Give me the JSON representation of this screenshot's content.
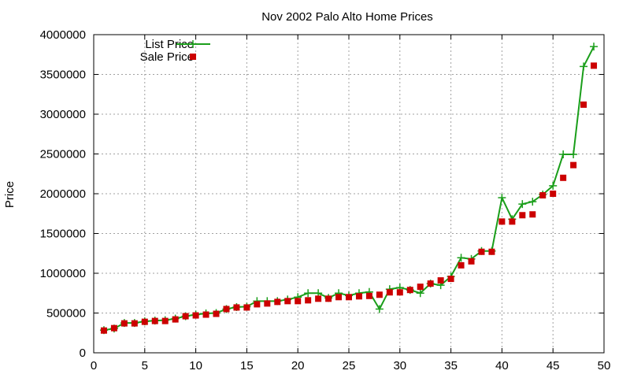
{
  "chart_data": {
    "type": "line",
    "title": "Nov 2002 Palo Alto Home Prices",
    "xlabel": "",
    "ylabel": "Price",
    "xlim": [
      0,
      50
    ],
    "ylim": [
      0,
      4000000
    ],
    "x_ticks": [
      0,
      5,
      10,
      15,
      20,
      25,
      30,
      35,
      40,
      45,
      50
    ],
    "y_ticks": [
      0,
      500000,
      1000000,
      1500000,
      2000000,
      2500000,
      3000000,
      3500000,
      4000000
    ],
    "grid": true,
    "legend_position": "top-left",
    "series": [
      {
        "name": "List Price",
        "style": "line+plus",
        "color": "#1a9e1a",
        "x": [
          1,
          2,
          3,
          4,
          5,
          6,
          7,
          8,
          9,
          10,
          11,
          12,
          13,
          14,
          15,
          16,
          17,
          18,
          19,
          20,
          21,
          22,
          23,
          24,
          25,
          26,
          27,
          28,
          29,
          30,
          31,
          32,
          33,
          34,
          35,
          36,
          37,
          38,
          39,
          40,
          41,
          42,
          43,
          44,
          45,
          46,
          47,
          48,
          49
        ],
        "values": [
          285000,
          305000,
          375000,
          375000,
          395000,
          405000,
          410000,
          430000,
          460000,
          480000,
          495000,
          500000,
          550000,
          575000,
          580000,
          650000,
          650000,
          650000,
          670000,
          700000,
          750000,
          750000,
          690000,
          750000,
          720000,
          750000,
          765000,
          550000,
          800000,
          820000,
          790000,
          750000,
          870000,
          850000,
          960000,
          1195000,
          1180000,
          1280000,
          1280000,
          1950000,
          1680000,
          1870000,
          1900000,
          1990000,
          2100000,
          2495000,
          2495000,
          3600000,
          3850000
        ]
      },
      {
        "name": "Sale Price",
        "style": "square-points",
        "color": "#cc0000",
        "x": [
          1,
          2,
          3,
          4,
          5,
          6,
          7,
          8,
          9,
          10,
          11,
          12,
          13,
          14,
          15,
          16,
          17,
          18,
          19,
          20,
          21,
          22,
          23,
          24,
          25,
          26,
          27,
          28,
          29,
          30,
          31,
          32,
          33,
          34,
          35,
          36,
          37,
          38,
          39,
          40,
          41,
          42,
          43,
          44,
          45,
          46,
          47,
          48,
          49
        ],
        "values": [
          280000,
          310000,
          370000,
          370000,
          390000,
          400000,
          400000,
          420000,
          460000,
          470000,
          480000,
          490000,
          550000,
          570000,
          570000,
          610000,
          620000,
          640000,
          650000,
          650000,
          660000,
          680000,
          680000,
          700000,
          700000,
          710000,
          715000,
          730000,
          760000,
          760000,
          790000,
          830000,
          870000,
          910000,
          930000,
          1100000,
          1150000,
          1270000,
          1270000,
          1650000,
          1650000,
          1730000,
          1740000,
          1980000,
          2000000,
          2200000,
          2360000,
          3120000,
          3610000
        ]
      }
    ]
  }
}
